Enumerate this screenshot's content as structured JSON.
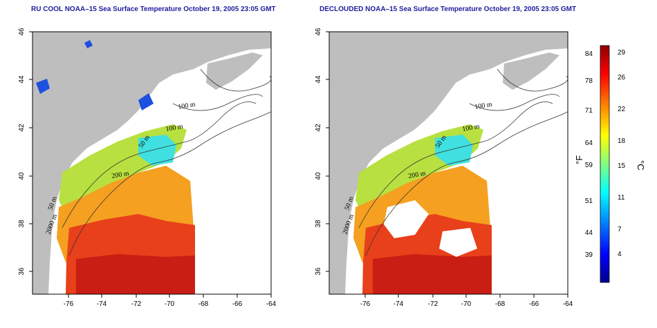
{
  "panels": [
    {
      "id": "left",
      "title": "RU COOL NOAA–15 Sea Surface Temperature October 19, 2005 23:05 GMT",
      "variant": "cloudy",
      "contour_labels": [
        "100 m",
        "100 m",
        "50 m",
        "200 m",
        "50 m",
        "2000 m"
      ]
    },
    {
      "id": "right",
      "title": "DECLOUDED NOAA–15 Sea Surface Temperature October 19, 2005 23:05 GMT",
      "variant": "declouded",
      "contour_labels": [
        "100 m",
        "100 m",
        "50 m",
        "200 m",
        "50 m",
        "2000 m"
      ]
    }
  ],
  "axes": {
    "x_ticks": [
      "-76",
      "-74",
      "-72",
      "-70",
      "-68",
      "-66",
      "-64"
    ],
    "y_ticks": [
      "46",
      "44",
      "42",
      "40",
      "38",
      "36"
    ]
  },
  "colorbar": {
    "fahrenheit_label": "°F",
    "celsius_label": "°C",
    "fahrenheit_ticks": [
      "84",
      "78",
      "71",
      "64",
      "59",
      "51",
      "44",
      "39"
    ],
    "celsius_ticks": [
      "29",
      "26",
      "22",
      "18",
      "15",
      "11",
      "7",
      "4"
    ],
    "colors": [
      "#00008f",
      "#0000ff",
      "#0080ff",
      "#00ffff",
      "#80ff80",
      "#ffff00",
      "#ff8000",
      "#ff0000",
      "#8f0000"
    ]
  },
  "colors": {
    "land": "#bebebe",
    "warm": "#e8401a",
    "gulf": "#c81e14",
    "shelf": "#f5a020",
    "cool": "#b8e040"
  }
}
